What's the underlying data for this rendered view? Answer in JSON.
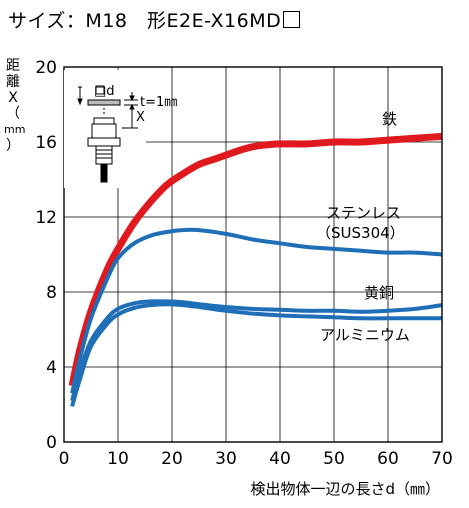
{
  "title": "サイズ：M18　形E2E-X16MD",
  "ylabel_chars": [
    "距",
    "離",
    "X",
    "（",
    "mm",
    "）"
  ],
  "inset": {
    "d_label": "□d",
    "x_label": "X",
    "t_label": "t=1㎜"
  },
  "chart_data": {
    "type": "line",
    "title": "サイズ：M18　形E2E-X16MD□",
    "xlabel": "検出物体一辺の長さd（㎜）",
    "ylabel": "距離X（㎜）",
    "xlim": [
      0,
      70
    ],
    "ylim": [
      0,
      20
    ],
    "x_ticks": [
      0,
      10,
      20,
      30,
      40,
      50,
      60,
      70
    ],
    "y_ticks": [
      0,
      4,
      8,
      12,
      16,
      20
    ],
    "grid": true,
    "series": [
      {
        "name": "鉄",
        "color": "#e0191f",
        "width": 7,
        "x": [
          1.5,
          3,
          5,
          8,
          10,
          13,
          16,
          19,
          22,
          25,
          28,
          30,
          33,
          36,
          40,
          45,
          50,
          55,
          60,
          65,
          70
        ],
        "y": [
          3.0,
          5.0,
          7.0,
          9.2,
          10.3,
          11.7,
          12.8,
          13.7,
          14.3,
          14.8,
          15.1,
          15.3,
          15.6,
          15.8,
          15.9,
          15.9,
          16.0,
          16.0,
          16.1,
          16.2,
          16.3
        ]
      },
      {
        "name": "ステンレス（SUS304）",
        "color": "#1f6eb8",
        "width": 4,
        "x": [
          1.5,
          3,
          5,
          8,
          10,
          13,
          16,
          19,
          22,
          25,
          30,
          35,
          40,
          45,
          50,
          55,
          60,
          65,
          70
        ],
        "y": [
          2.6,
          4.5,
          6.6,
          8.7,
          9.8,
          10.6,
          11.0,
          11.2,
          11.3,
          11.3,
          11.1,
          10.8,
          10.6,
          10.4,
          10.3,
          10.2,
          10.1,
          10.1,
          10.0
        ]
      },
      {
        "name": "黄銅",
        "color": "#1f6eb8",
        "width": 4,
        "x": [
          1.5,
          3,
          5,
          8,
          10,
          13,
          16,
          19,
          22,
          25,
          30,
          35,
          40,
          45,
          50,
          55,
          60,
          65,
          70
        ],
        "y": [
          2.2,
          3.8,
          5.4,
          6.6,
          7.1,
          7.4,
          7.5,
          7.5,
          7.45,
          7.35,
          7.2,
          7.1,
          7.05,
          7.0,
          7.0,
          6.95,
          7.0,
          7.1,
          7.3
        ]
      },
      {
        "name": "アルミニウム",
        "color": "#1f6eb8",
        "width": 4,
        "x": [
          1.5,
          3,
          5,
          8,
          10,
          13,
          16,
          19,
          22,
          25,
          30,
          35,
          40,
          45,
          50,
          55,
          60,
          65,
          70
        ],
        "y": [
          1.9,
          3.4,
          5.1,
          6.3,
          6.8,
          7.15,
          7.3,
          7.35,
          7.3,
          7.2,
          7.0,
          6.85,
          6.75,
          6.7,
          6.65,
          6.6,
          6.6,
          6.6,
          6.6
        ]
      }
    ],
    "annotations": [
      "鉄",
      "ステンレス",
      "（SUS304）",
      "黄銅",
      "アルミニウム"
    ]
  }
}
